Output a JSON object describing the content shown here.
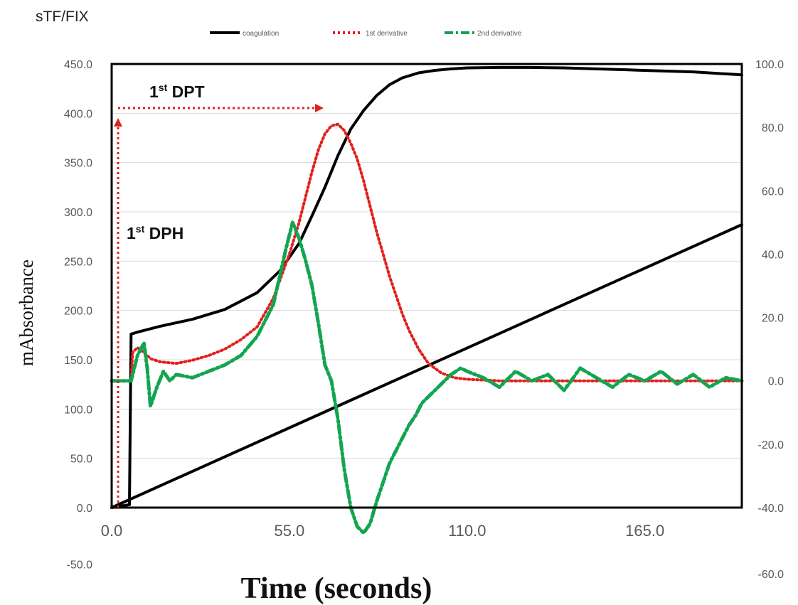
{
  "chart_data": {
    "type": "line",
    "title": "sTF/FIX",
    "xlabel": "Time (seconds)",
    "ylabel": "mAbsorbance",
    "xlim": [
      0,
      195
    ],
    "ylim_left": [
      0,
      450
    ],
    "ylim_right": [
      -40,
      100
    ],
    "x_ticks": [
      "0.0",
      "55.0",
      "110.0",
      "165.0"
    ],
    "x_ticks_values": [
      0,
      55,
      110,
      165
    ],
    "y_left_ticks": [
      "450.0",
      "400.0",
      "350.0",
      "300.0",
      "250.0",
      "200.0",
      "150.0",
      "100.0",
      "50.0",
      "0.0",
      "-50.0"
    ],
    "y_right_ticks": [
      "100.0",
      "80.0",
      "60.0",
      "40.0",
      "20.0",
      "0.0",
      "-20.0",
      "-40.0",
      "-60.0"
    ],
    "grid": true,
    "legend_position": "top",
    "legend": [
      {
        "name": "coagulation",
        "color": "#000000",
        "style": "solid"
      },
      {
        "name": "1st derivative",
        "color": "#e0201c",
        "style": "dotted"
      },
      {
        "name": "2nd derivative",
        "color": "#12a550",
        "style": "dash-dot"
      }
    ],
    "series": [
      {
        "name": "coagulation",
        "axis": "left",
        "x": [
          0,
          5.5,
          6,
          8,
          15,
          25,
          35,
          45,
          52,
          58,
          62,
          66,
          70,
          74,
          78,
          82,
          86,
          90,
          95,
          100,
          105,
          110,
          120,
          130,
          140,
          150,
          160,
          170,
          180,
          190,
          195
        ],
        "values": [
          0,
          3,
          176,
          178,
          184,
          191,
          201,
          218,
          240,
          268,
          296,
          325,
          357,
          384,
          403,
          418,
          429,
          436,
          441,
          443.5,
          445,
          446,
          446.5,
          446.5,
          446,
          445,
          444,
          443,
          442,
          440,
          439
        ]
      },
      {
        "name": "linear",
        "axis": "left",
        "x": [
          0,
          195
        ],
        "values": [
          0,
          287
        ]
      },
      {
        "name": "1st derivative",
        "axis": "right",
        "x": [
          0,
          6,
          6.5,
          8,
          10,
          12,
          15,
          20,
          25,
          30,
          35,
          40,
          45,
          50,
          55,
          58,
          60,
          62,
          64,
          66,
          68,
          70,
          72,
          74,
          76,
          78,
          80,
          82,
          84,
          86,
          88,
          90,
          92,
          95,
          98,
          102,
          106,
          110,
          120,
          130,
          140,
          150,
          160,
          170,
          180,
          195
        ],
        "values": [
          0,
          0,
          9,
          10.5,
          9,
          7,
          6,
          5.5,
          6.5,
          8,
          10,
          13,
          17,
          26,
          40,
          50,
          58,
          66,
          73,
          78,
          80.5,
          81,
          79,
          75,
          70,
          63,
          55,
          47,
          40,
          33,
          27,
          21,
          16,
          10,
          5.5,
          2.5,
          1,
          0.5,
          0,
          0,
          0,
          0,
          0,
          0,
          0,
          0
        ]
      },
      {
        "name": "2nd derivative",
        "axis": "right",
        "x": [
          0,
          6,
          8,
          10,
          11,
          12,
          14,
          16,
          18,
          20,
          25,
          30,
          35,
          40,
          45,
          50,
          52,
          54,
          56,
          58,
          60,
          62,
          64,
          66,
          68,
          70,
          72,
          74,
          76,
          78,
          80,
          82,
          84,
          86,
          88,
          90,
          92,
          94,
          96,
          98,
          100,
          102,
          105,
          108,
          110,
          115,
          120,
          125,
          130,
          135,
          140,
          145,
          150,
          155,
          160,
          165,
          170,
          175,
          180,
          185,
          190,
          195
        ],
        "values": [
          0,
          0,
          8,
          12,
          4,
          -8,
          -2,
          3,
          0,
          2,
          1,
          3,
          5,
          8,
          14,
          24,
          33,
          42,
          50,
          45,
          38,
          30,
          18,
          5,
          0,
          -12,
          -28,
          -40,
          -46,
          -48,
          -45,
          -38,
          -32,
          -26,
          -22,
          -18,
          -14,
          -11,
          -7,
          -5,
          -3,
          -1,
          2,
          4,
          3,
          1,
          -2,
          3,
          0,
          2,
          -3,
          4,
          1,
          -2,
          2,
          0,
          3,
          -1,
          2,
          -2,
          1,
          0
        ]
      }
    ],
    "annotations": [
      {
        "main": "1",
        "sup": "st",
        "rest": " DPT"
      },
      {
        "main": "1",
        "sup": "st",
        "rest": " DPH"
      }
    ]
  }
}
